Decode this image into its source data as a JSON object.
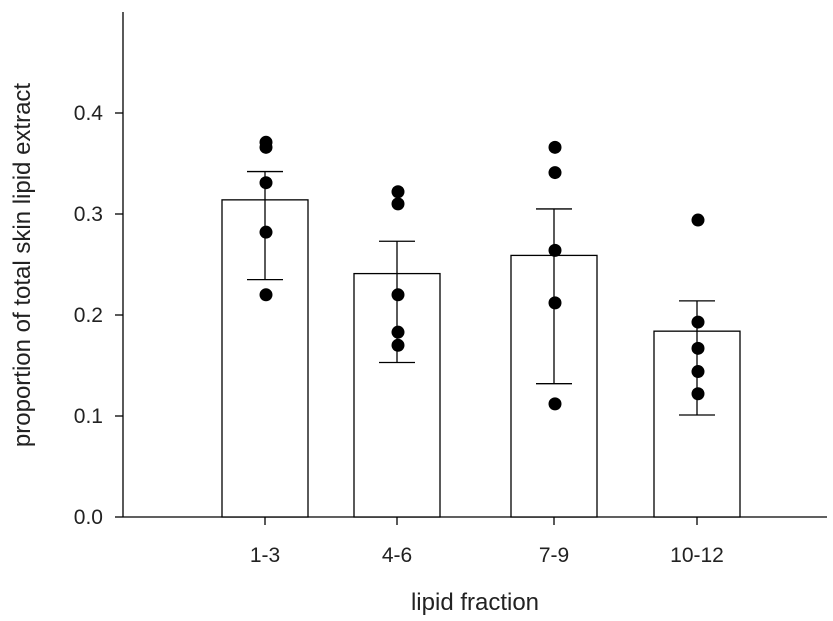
{
  "chart_data": {
    "type": "bar",
    "title": "",
    "xlabel": "lipid fraction",
    "ylabel": "proportion of total skin lipid extract",
    "categories": [
      "1-3",
      "4-6",
      "7-9",
      "10-12"
    ],
    "values": [
      0.314,
      0.241,
      0.259,
      0.184
    ],
    "error_upper": [
      0.342,
      0.273,
      0.305,
      0.214
    ],
    "error_lower": [
      0.235,
      0.153,
      0.132,
      0.101
    ],
    "points": [
      [
        0.371,
        0.366,
        0.331,
        0.282,
        0.22
      ],
      [
        0.322,
        0.31,
        0.22,
        0.183,
        0.17
      ],
      [
        0.366,
        0.341,
        0.264,
        0.212,
        0.112
      ],
      [
        0.294,
        0.193,
        0.167,
        0.144,
        0.122
      ]
    ],
    "ylim": [
      0,
      0.5
    ],
    "yticks": [
      "0.0",
      "0.1",
      "0.2",
      "0.3",
      "0.4"
    ],
    "ytick_values": [
      0,
      0.1,
      0.2,
      0.3,
      0.4
    ],
    "grid": false,
    "bar_fill": "#ffffff",
    "point_color": "#000000"
  }
}
